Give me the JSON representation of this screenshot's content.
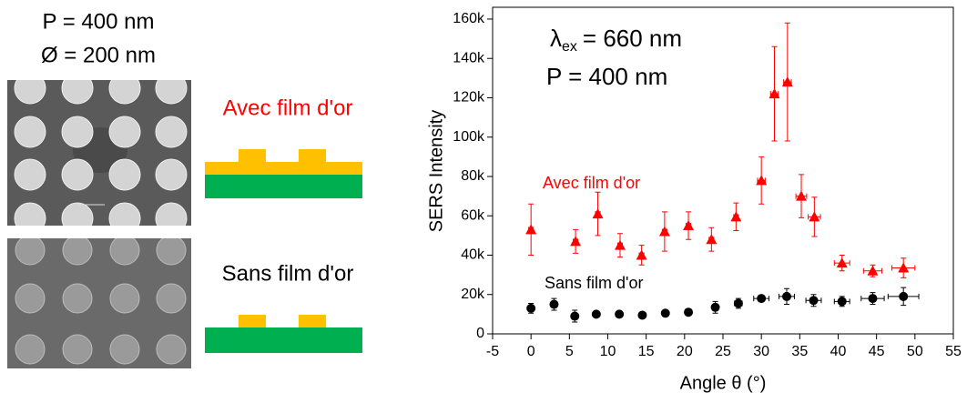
{
  "left_panel": {
    "period": "P = 400 nm",
    "diameter": "Ø = 200 nm",
    "label_with": "Avec film d'or",
    "label_without": "Sans film d'or"
  },
  "chart_data": {
    "type": "scatter",
    "annotations": {
      "lambda_symbol": "λ",
      "lambda_sub": "ex",
      "lambda_text": "= 660 nm",
      "period": "P = 400 nm"
    },
    "xlabel": "Angle θ (°)",
    "ylabel": "SERS Intensity",
    "xlim": [
      -5,
      55
    ],
    "xticks": [
      -5,
      0,
      5,
      10,
      15,
      20,
      25,
      30,
      35,
      40,
      45,
      50,
      55
    ],
    "ylim": [
      0,
      166000
    ],
    "yticks": [
      {
        "value": 0,
        "label": "0"
      },
      {
        "value": 20000,
        "label": "20k"
      },
      {
        "value": 40000,
        "label": "40k"
      },
      {
        "value": 60000,
        "label": "60k"
      },
      {
        "value": 80000,
        "label": "80k"
      },
      {
        "value": 100000,
        "label": "100k"
      },
      {
        "value": 120000,
        "label": "120k"
      },
      {
        "value": 140000,
        "label": "140k"
      },
      {
        "value": 160000,
        "label": "160k"
      }
    ],
    "series": [
      {
        "name": "Avec film d'or",
        "color": "#ff0000",
        "marker": "triangle",
        "x": [
          0,
          5.8,
          8.7,
          11.6,
          14.4,
          17.4,
          20.5,
          23.5,
          26.7,
          30,
          31.7,
          33.4,
          35.2,
          36.9,
          40.5,
          44.5,
          48.5
        ],
        "values": [
          53000,
          47000,
          61000,
          45000,
          40000,
          52000,
          55000,
          48000,
          59500,
          78000,
          122000,
          128000,
          70000,
          59500,
          36000,
          32000,
          33500
        ],
        "errors": [
          13000,
          6000,
          11000,
          6000,
          5000,
          10000,
          7000,
          6000,
          7000,
          12000,
          24000,
          30000,
          11000,
          10000,
          4000,
          3000,
          5000
        ],
        "xerrors": [
          0.3,
          0.3,
          0.3,
          0.3,
          0.3,
          0.3,
          0.3,
          0.3,
          0.3,
          0.5,
          0.5,
          0.5,
          0.7,
          0.8,
          1,
          1.2,
          1.5
        ]
      },
      {
        "name": "Sans film d'or",
        "color": "#000000",
        "marker": "circle",
        "x": [
          0,
          3,
          5.7,
          8.5,
          11.5,
          14.5,
          17.5,
          20.5,
          24,
          27,
          30,
          33.3,
          36.8,
          40.5,
          44.5,
          48.5
        ],
        "values": [
          13000,
          15000,
          9000,
          10000,
          10000,
          9500,
          10500,
          11000,
          13500,
          15500,
          18000,
          19000,
          17000,
          16500,
          18000,
          19000
        ],
        "errors": [
          2500,
          3000,
          3000,
          1000,
          1000,
          1000,
          1000,
          1500,
          3000,
          2500,
          1500,
          4000,
          3000,
          2500,
          3000,
          4500
        ],
        "xerrors": [
          0.3,
          0.3,
          0.3,
          0.3,
          0.3,
          0.3,
          0.3,
          0.3,
          0.3,
          0.5,
          1,
          1,
          1,
          1,
          1.5,
          2
        ]
      }
    ]
  }
}
